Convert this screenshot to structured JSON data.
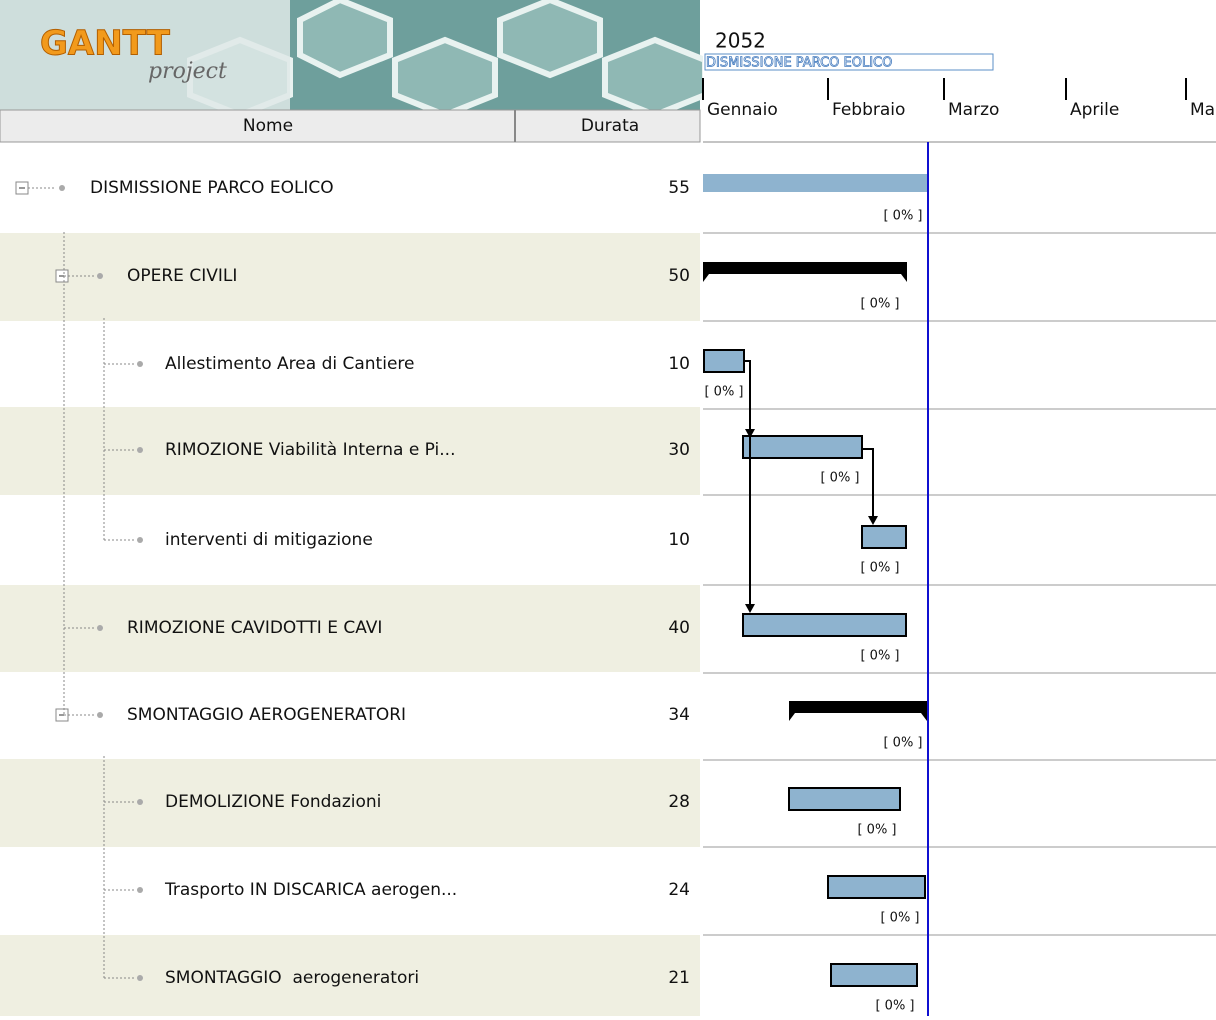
{
  "logo": {
    "title": "GANTT",
    "subtitle": "project"
  },
  "table": {
    "columns": [
      "Nome",
      "Durata"
    ],
    "rows": [
      {
        "name": "DISMISSIONE PARCO EOLICO",
        "duration": 55,
        "progress": "[ 0% ]"
      },
      {
        "name": "OPERE CIVILI",
        "duration": 50,
        "progress": "[ 0% ]"
      },
      {
        "name": "Allestimento Area di Cantiere",
        "duration": 10,
        "progress": "[ 0% ]"
      },
      {
        "name": "RIMOZIONE Viabilità Interna e Pi...",
        "duration": 30,
        "progress": "[ 0% ]"
      },
      {
        "name": "interventi di mitigazione",
        "duration": 10,
        "progress": "[ 0% ]"
      },
      {
        "name": "RIMOZIONE CAVIDOTTI E CAVI",
        "duration": 40,
        "progress": "[ 0% ]"
      },
      {
        "name": "SMONTAGGIO AEROGENERATORI",
        "duration": 34,
        "progress": "[ 0% ]"
      },
      {
        "name": "DEMOLIZIONE Fondazioni",
        "duration": 28,
        "progress": "[ 0% ]"
      },
      {
        "name": "Trasporto IN DISCARICA aerogen...",
        "duration": 24,
        "progress": "[ 0% ]"
      },
      {
        "name": "SMONTAGGIO  aerogeneratori",
        "duration": 21,
        "progress": "[ 0% ]"
      }
    ]
  },
  "timeline": {
    "year": "2052",
    "project_label": "DISMISSIONE PARCO EOLICO",
    "months": [
      "Gennaio",
      "Febbraio",
      "Marzo",
      "Aprile",
      "Ma"
    ]
  }
}
